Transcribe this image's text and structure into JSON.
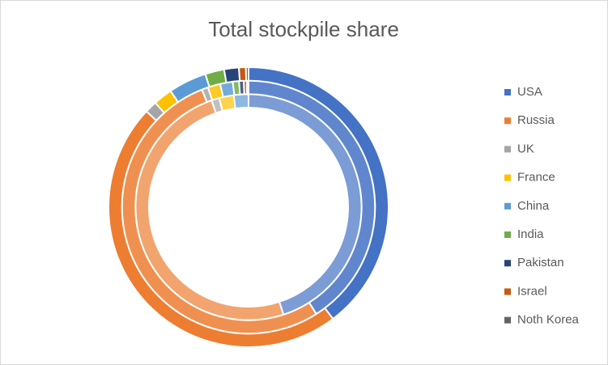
{
  "chart_data": {
    "type": "doughnut",
    "title": "Total stockpile share",
    "categories": [
      "USA",
      "Russia",
      "UK",
      "France",
      "China",
      "India",
      "Pakistan",
      "Israel",
      "Noth Korea"
    ],
    "colors": [
      "#4472c4",
      "#ed7d31",
      "#a5a5a5",
      "#ffc000",
      "#5b9bd5",
      "#70ad47",
      "#264478",
      "#c55a11",
      "#636363"
    ],
    "series": [
      {
        "values": [
          45,
          49.7,
          1.1,
          2.1,
          2.1,
          0,
          0,
          0,
          0
        ]
      },
      {
        "values": [
          41,
          53,
          0.8,
          1.6,
          1.6,
          0.8,
          0.6,
          0.4,
          0.2
        ]
      },
      {
        "values": [
          39.7,
          47.3,
          1.4,
          2.2,
          4.4,
          2.2,
          1.7,
          0.8,
          0.3
        ]
      }
    ],
    "legend": "right"
  }
}
